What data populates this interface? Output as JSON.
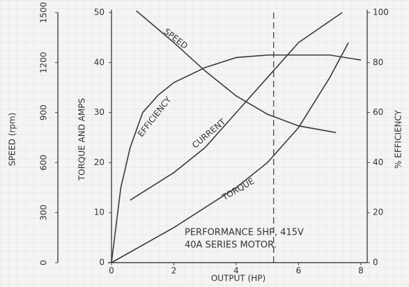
{
  "chart_data": {
    "type": "line",
    "x_label": "OUTPUT (HP)",
    "y_label": "TORQUE AND AMPS",
    "y2_label": "% EFFICIENCY",
    "y3_label": "SPEED (rpm)",
    "xlim": [
      0,
      8
    ],
    "xticks": [
      0,
      2,
      4,
      6,
      8
    ],
    "ylim": [
      0,
      50
    ],
    "yticks": [
      0,
      10,
      20,
      30,
      40,
      50
    ],
    "y2lim": [
      0,
      100
    ],
    "y2ticks": [
      0,
      20,
      40,
      60,
      80,
      100
    ],
    "y3lim": [
      0,
      1500
    ],
    "y3ticks": [
      0,
      300,
      600,
      900,
      1200,
      1500
    ],
    "series": [
      {
        "name": "SPEED",
        "color": "#3a3a3a",
        "axis": "y3",
        "x": [
          0.8,
          2,
          3,
          4,
          5,
          6,
          7.2
        ],
        "values": [
          1510,
          1320,
          1150,
          1000,
          890,
          820,
          780
        ]
      },
      {
        "name": "EFFICIENCY",
        "color": "#3a3a3a",
        "axis": "y2",
        "x": [
          0,
          0.3,
          0.6,
          1,
          1.5,
          2,
          3,
          4,
          5,
          6,
          7,
          8
        ],
        "values": [
          0,
          30,
          46,
          60,
          67,
          72,
          78,
          82,
          83,
          83,
          83,
          81
        ]
      },
      {
        "name": "CURRENT",
        "color": "#3a3a3a",
        "axis": "y",
        "x": [
          0.6,
          2,
          3,
          4,
          5,
          6,
          7.4
        ],
        "values": [
          12.5,
          18,
          23,
          30,
          37,
          44,
          50
        ]
      },
      {
        "name": "TORQUE",
        "color": "#3a3a3a",
        "axis": "y",
        "x": [
          0,
          2,
          4,
          5,
          6,
          7,
          7.6
        ],
        "values": [
          0,
          7,
          15,
          20,
          27,
          37,
          44
        ]
      }
    ],
    "vline_x": 5.2,
    "annotations": [
      "PERFORMANCE  5HP, 415V",
      "40A SERIES  MOTOR."
    ],
    "grid": true
  }
}
